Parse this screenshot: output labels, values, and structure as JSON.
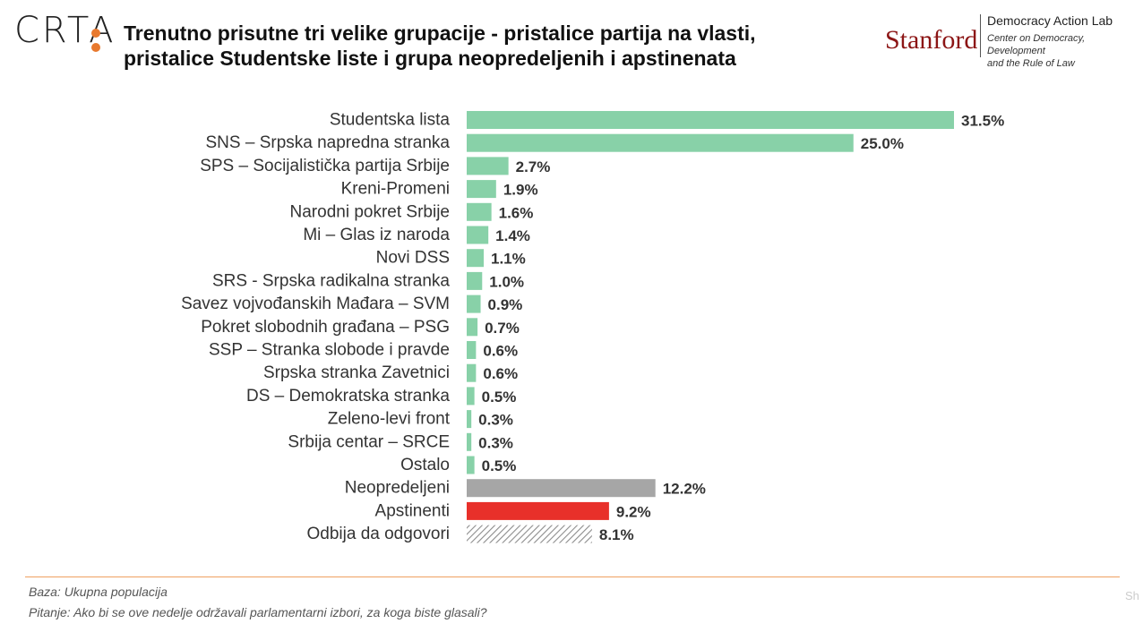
{
  "header": {
    "logo_text": "CRTA",
    "title_line1": "Trenutno prisutne tri velike grupacije - pristalice partija na vlasti,",
    "title_line2": "pristalice Studentske liste i grupa neopredeljenih i apstinenata"
  },
  "partner": {
    "name": "Stanford",
    "lab": "Democracy Action Lab",
    "center_line1": "Center on Democracy, Development",
    "center_line2": "and the Rule of Law"
  },
  "colors": {
    "party": "#88d1a8",
    "undecided": "#a6a6a6",
    "abstain": "#e8302a",
    "refused": "#8c8c8c",
    "brand_orange": "#e8792e",
    "stanford_red": "#8c1515"
  },
  "chart_data": {
    "type": "bar",
    "orientation": "horizontal",
    "value_suffix": "%",
    "categories": [
      "Studentska lista",
      "SNS – Srpska napredna stranka",
      "SPS – Socijalistička partija Srbije",
      "Kreni-Promeni",
      "Narodni pokret Srbije",
      "Mi – Glas iz naroda",
      "Novi DSS",
      "SRS - Srpska radikalna stranka",
      "Savez vojvođanskih Mađara – SVM",
      "Pokret slobodnih građana – PSG",
      "SSP – Stranka slobode i pravde",
      "Srpska stranka Zavetnici",
      "DS – Demokratska stranka",
      "Zeleno-levi front",
      "Srbija centar – SRCE",
      "Ostalo",
      "Neopredeljeni",
      "Apstinenti",
      "Odbija da odgovori"
    ],
    "values": [
      31.5,
      25.0,
      2.7,
      1.9,
      1.6,
      1.4,
      1.1,
      1.0,
      0.9,
      0.7,
      0.6,
      0.6,
      0.5,
      0.3,
      0.3,
      0.5,
      12.2,
      9.2,
      8.1
    ],
    "value_labels": [
      "31.5%",
      "25.0%",
      "2.7%",
      "1.9%",
      "1.6%",
      "1.4%",
      "1.1%",
      "1.0%",
      "0.9%",
      "0.7%",
      "0.6%",
      "0.6%",
      "0.5%",
      "0.3%",
      "0.3%",
      "0.5%",
      "12.2%",
      "9.2%",
      "8.1%"
    ],
    "bar_styles": [
      "party",
      "party",
      "party",
      "party",
      "party",
      "party",
      "party",
      "party",
      "party",
      "party",
      "party",
      "party",
      "party",
      "party",
      "party",
      "party",
      "undecided",
      "abstain",
      "refused-hatched"
    ],
    "xlim": [
      0,
      31.5
    ],
    "grid": false,
    "legend": "none"
  },
  "footer": {
    "base": "Baza: Ukupna populacija",
    "question": "Pitanje: Ako bi se ove nedelje održavali parlamentarni izbori, za koga biste glasali?"
  }
}
